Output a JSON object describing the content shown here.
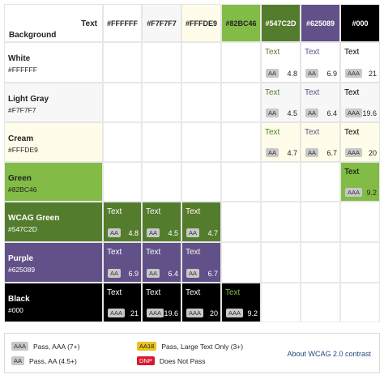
{
  "corner": {
    "text_label": "Text",
    "background_label": "Background"
  },
  "colors": [
    {
      "name": "White",
      "hex": "#FFFFFF",
      "head": "#FFFFFF",
      "bg": "#FFFFFF",
      "fg": "#222222"
    },
    {
      "name": "Light Gray",
      "hex": "#F7F7F7",
      "head": "#F7F7F7",
      "bg": "#F7F7F7",
      "fg": "#222222"
    },
    {
      "name": "Cream",
      "hex": "#FFFDE9",
      "head": "#FFFDE9",
      "bg": "#FFFDE9",
      "fg": "#222222"
    },
    {
      "name": "Green",
      "hex": "#82BC46",
      "head": "#82BC46",
      "bg": "#82BC46",
      "fg": "#222222"
    },
    {
      "name": "WCAG Green",
      "hex": "#547C2D",
      "head": "#547C2D",
      "bg": "#547C2D",
      "fg": "#FFFFFF"
    },
    {
      "name": "Purple",
      "hex": "#625089",
      "head": "#625089",
      "bg": "#625089",
      "fg": "#FFFFFF"
    },
    {
      "name": "Black",
      "hex": "#000",
      "head": "#000",
      "bg": "#000000",
      "fg": "#FFFFFF"
    }
  ],
  "sample_text": "Text",
  "badge_colors": {
    "AAA": "#C8C8C8",
    "AA": "#C8C8C8",
    "AA18": "#E9C21E",
    "DNP": "#D8182D"
  },
  "matrix": [
    [
      null,
      null,
      null,
      null,
      {
        "badge": "AA",
        "ratio": "4.8"
      },
      {
        "badge": "AA",
        "ratio": "6.9"
      },
      {
        "badge": "AAA",
        "ratio": "21"
      }
    ],
    [
      null,
      null,
      null,
      null,
      {
        "badge": "AA",
        "ratio": "4.5"
      },
      {
        "badge": "AA",
        "ratio": "6.4"
      },
      {
        "badge": "AAA",
        "ratio": "19.6"
      }
    ],
    [
      null,
      null,
      null,
      null,
      {
        "badge": "AA",
        "ratio": "4.7"
      },
      {
        "badge": "AA",
        "ratio": "6.7"
      },
      {
        "badge": "AAA",
        "ratio": "20"
      }
    ],
    [
      null,
      null,
      null,
      null,
      null,
      null,
      {
        "badge": "AAA",
        "ratio": "9.2"
      }
    ],
    [
      {
        "badge": "AA",
        "ratio": "4.8"
      },
      {
        "badge": "AA",
        "ratio": "4.5"
      },
      {
        "badge": "AA",
        "ratio": "4.7"
      },
      null,
      null,
      null,
      null
    ],
    [
      {
        "badge": "AA",
        "ratio": "6.9"
      },
      {
        "badge": "AA",
        "ratio": "6.4"
      },
      {
        "badge": "AA",
        "ratio": "6.7"
      },
      null,
      null,
      null,
      null
    ],
    [
      {
        "badge": "AAA",
        "ratio": "21"
      },
      {
        "badge": "AAA",
        "ratio": "19.6"
      },
      {
        "badge": "AAA",
        "ratio": "20"
      },
      {
        "badge": "AAA",
        "ratio": "9.2"
      },
      null,
      null,
      null
    ]
  ],
  "legend": {
    "aaa": {
      "badge": "AAA",
      "label": "Pass, AAA (7+)"
    },
    "aa": {
      "badge": "AA",
      "label": "Pass, AA (4.5+)"
    },
    "aa18": {
      "badge": "AA18",
      "label": "Pass, Large Text Only (3+)"
    },
    "dnp": {
      "badge": "DNP",
      "label": "Does Not Pass"
    },
    "link": "About WCAG 2.0 contrast"
  }
}
